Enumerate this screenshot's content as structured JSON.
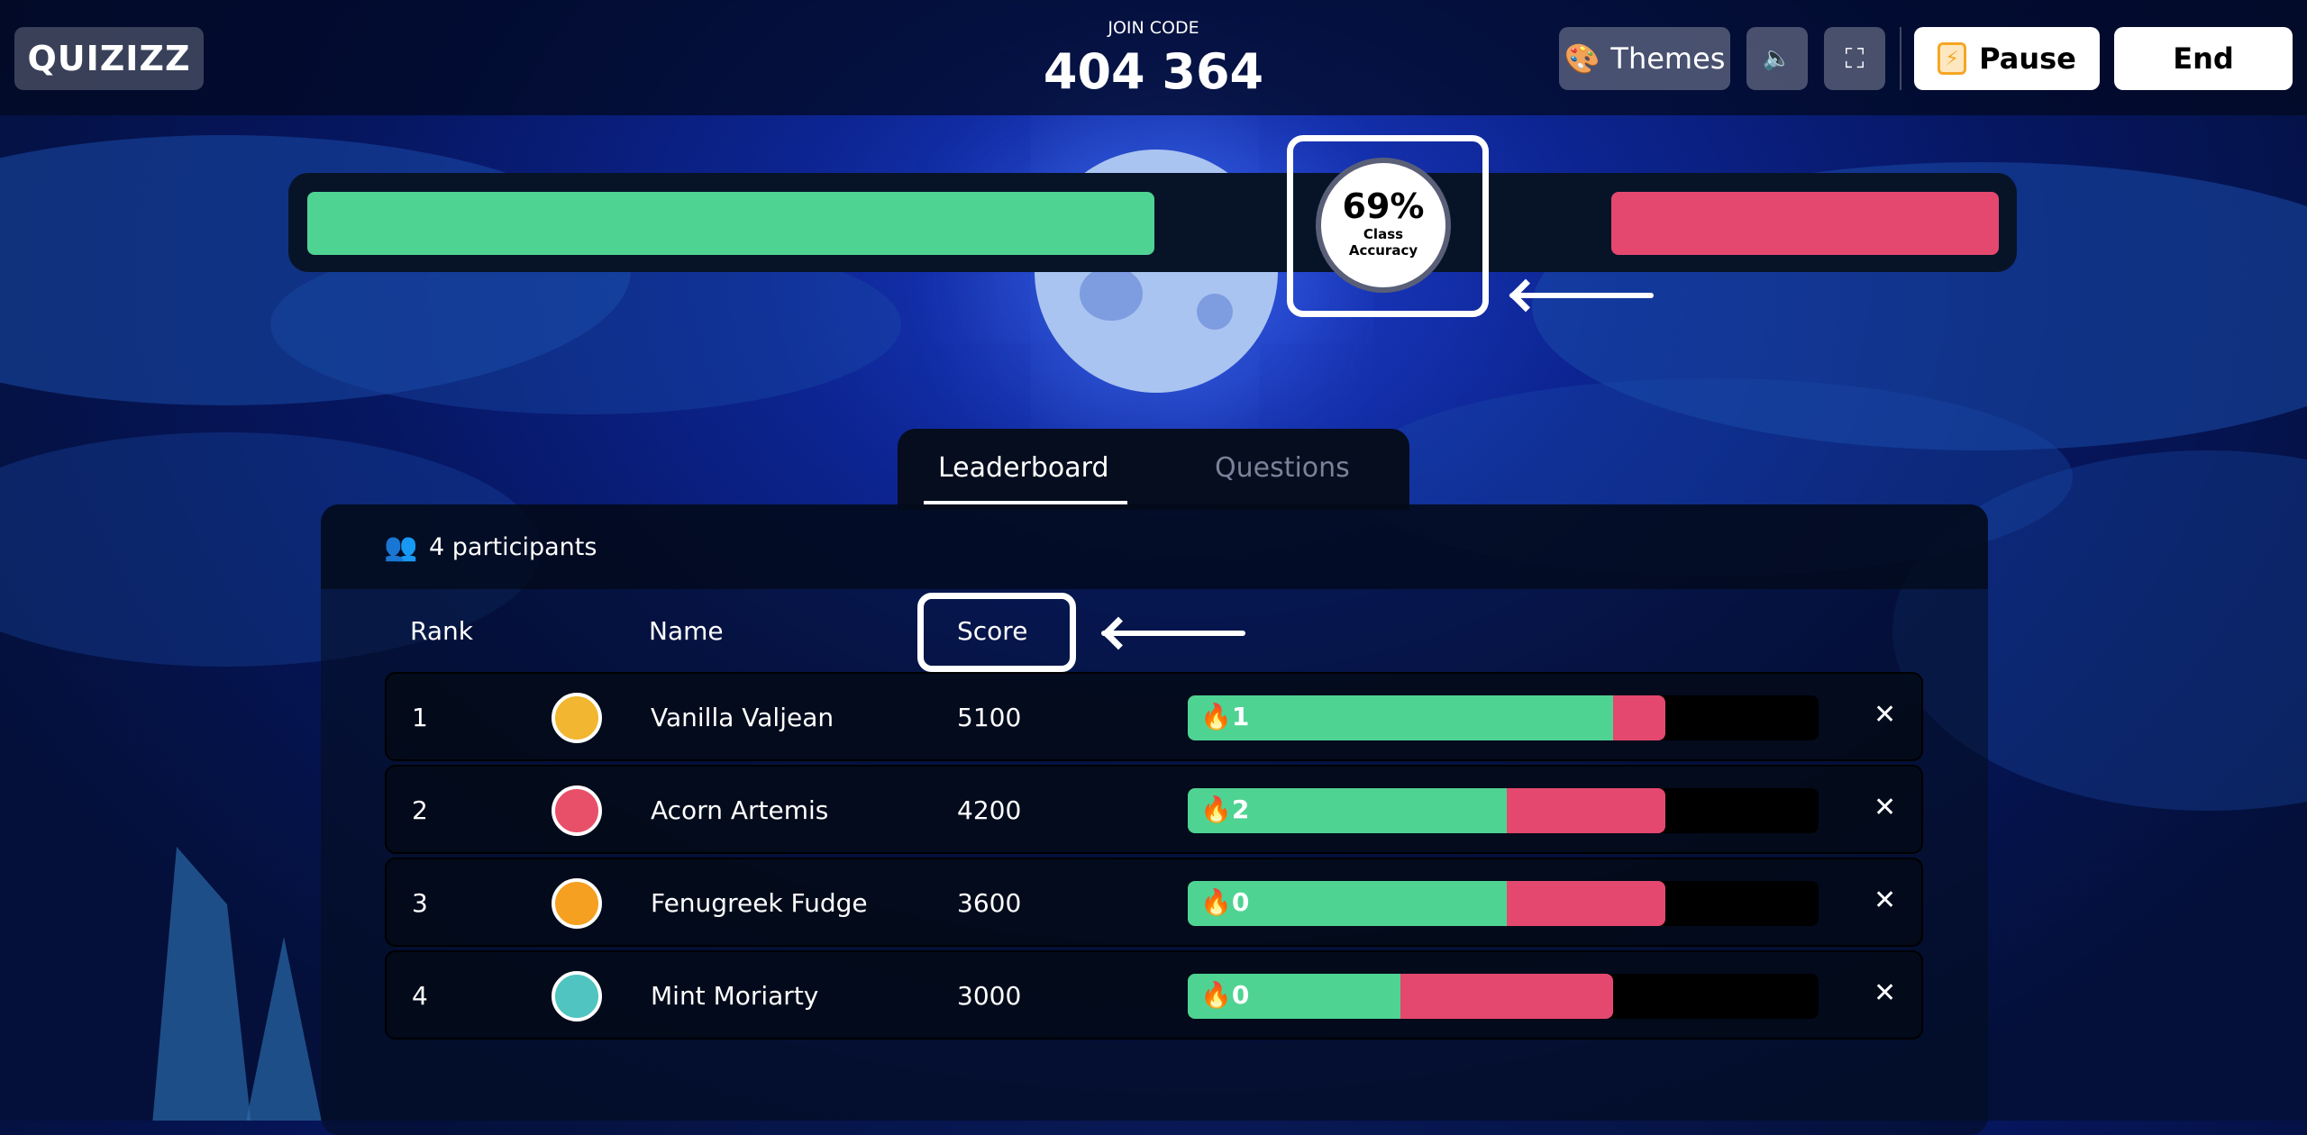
{
  "header": {
    "logo": "QUIZIZZ",
    "join_code_label": "JOIN CODE",
    "join_code": "404 364",
    "themes_label": "Themes",
    "pause_label": "Pause",
    "end_label": "End",
    "icons": [
      "palette-icon",
      "speaker-icon",
      "fullscreen-icon",
      "lightning-icon"
    ]
  },
  "accuracy": {
    "value": "69%",
    "label_line1": "Class",
    "label_line2": "Accuracy",
    "correct_pct": 69,
    "colors": {
      "correct": "#4fd392",
      "incorrect": "#e5486f"
    }
  },
  "tabs": [
    {
      "label": "Leaderboard",
      "active": true
    },
    {
      "label": "Questions",
      "active": false
    }
  ],
  "leaderboard": {
    "participants": "4 participants",
    "columns": {
      "rank": "Rank",
      "name": "Name",
      "score": "Score"
    },
    "rows": [
      {
        "rank": "1",
        "name": "Vanilla Valjean",
        "score": "5100",
        "streak": "1",
        "correct_pct": 67.4,
        "incorrect_pct": 8.3,
        "avatar_color": "#f2b630"
      },
      {
        "rank": "2",
        "name": "Acorn Artemis",
        "score": "4200",
        "streak": "2",
        "correct_pct": 50.6,
        "incorrect_pct": 25.1,
        "avatar_color": "#e8506a"
      },
      {
        "rank": "3",
        "name": "Fenugreek Fudge",
        "score": "3600",
        "streak": "0",
        "correct_pct": 50.6,
        "incorrect_pct": 25.1,
        "avatar_color": "#f5a020"
      },
      {
        "rank": "4",
        "name": "Mint Moriarty",
        "score": "3000",
        "streak": "0",
        "correct_pct": 33.7,
        "incorrect_pct": 33.7,
        "avatar_color": "#4fc4c0"
      }
    ]
  }
}
